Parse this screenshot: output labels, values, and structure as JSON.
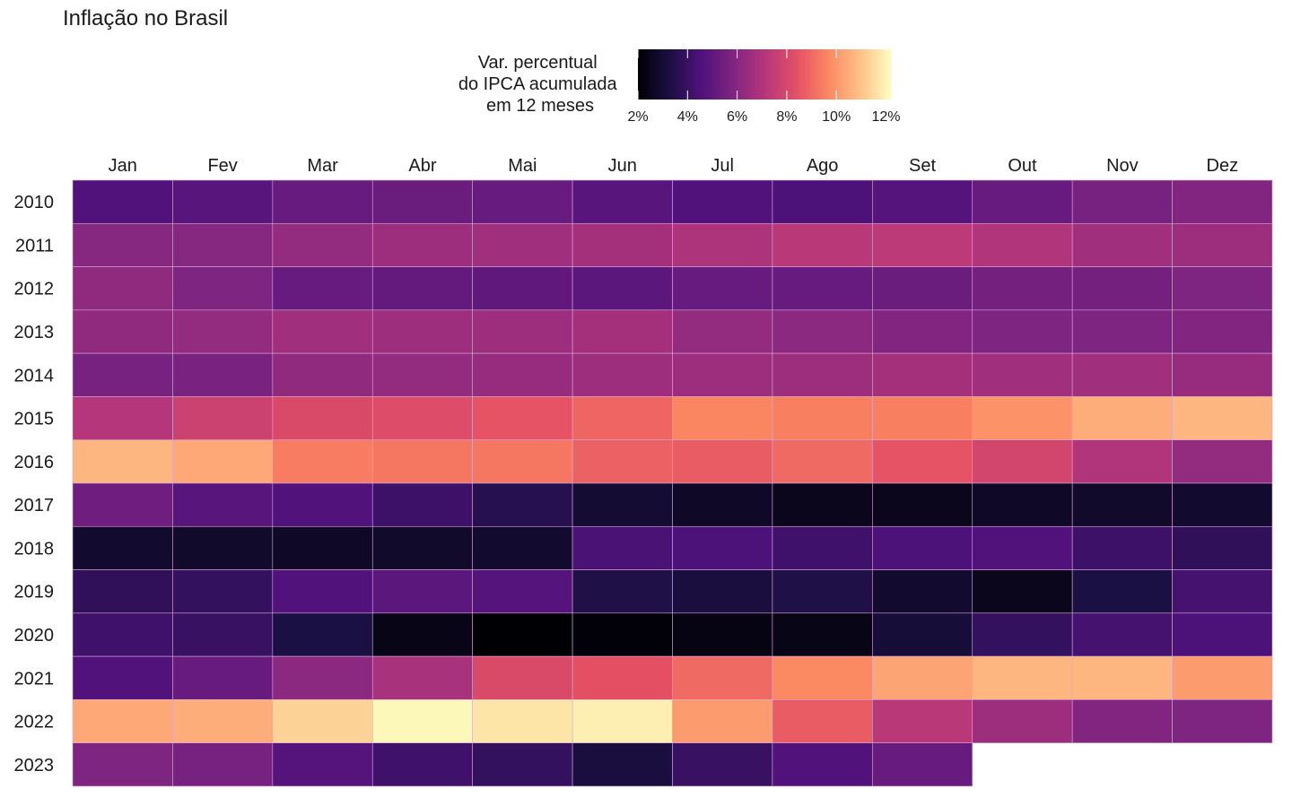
{
  "chart_data": {
    "type": "heatmap",
    "title": "Inflação no Brasil",
    "legend": {
      "title_lines": [
        "Var. percentual",
        "do IPCA acumulada",
        "em 12 meses"
      ],
      "ticks": [
        2,
        4,
        6,
        8,
        10,
        12
      ],
      "tick_labels": [
        "2%",
        "4%",
        "6%",
        "8%",
        "10%",
        "12%"
      ],
      "range": [
        2.0,
        12.2
      ],
      "placement": "top-center"
    },
    "colormap": "magma",
    "months": [
      "Jan",
      "Fev",
      "Mar",
      "Abr",
      "Mai",
      "Jun",
      "Jul",
      "Ago",
      "Set",
      "Out",
      "Nov",
      "Dez"
    ],
    "years": [
      "2010",
      "2011",
      "2012",
      "2013",
      "2014",
      "2015",
      "2016",
      "2017",
      "2018",
      "2019",
      "2020",
      "2021",
      "2022",
      "2023"
    ],
    "values": [
      [
        4.6,
        4.8,
        5.2,
        5.3,
        5.2,
        4.8,
        4.6,
        4.5,
        4.7,
        5.2,
        5.6,
        5.9
      ],
      [
        6.0,
        6.0,
        6.3,
        6.5,
        6.6,
        6.7,
        6.9,
        7.2,
        7.3,
        7.0,
        6.6,
        6.5
      ],
      [
        6.2,
        5.8,
        5.2,
        5.1,
        5.0,
        4.9,
        5.2,
        5.2,
        5.3,
        5.5,
        5.5,
        5.8
      ],
      [
        6.2,
        6.3,
        6.6,
        6.5,
        6.5,
        6.7,
        6.3,
        6.1,
        5.9,
        5.8,
        5.8,
        5.9
      ],
      [
        5.6,
        5.7,
        6.2,
        6.3,
        6.4,
        6.5,
        6.5,
        6.5,
        6.7,
        6.6,
        6.6,
        6.4
      ],
      [
        7.1,
        7.7,
        8.1,
        8.2,
        8.5,
        8.9,
        9.6,
        9.5,
        9.5,
        9.9,
        10.5,
        10.7
      ],
      [
        10.7,
        10.4,
        9.4,
        9.3,
        9.3,
        8.8,
        8.7,
        9.0,
        8.5,
        7.9,
        7.0,
        6.3
      ],
      [
        5.4,
        4.8,
        4.6,
        4.1,
        3.6,
        3.0,
        2.7,
        2.5,
        2.5,
        2.7,
        2.8,
        2.9
      ],
      [
        2.9,
        2.8,
        2.7,
        2.8,
        2.9,
        4.4,
        4.5,
        4.2,
        4.5,
        4.6,
        4.1,
        3.8
      ],
      [
        3.8,
        3.9,
        4.6,
        4.9,
        4.7,
        3.4,
        3.2,
        3.4,
        2.9,
        2.5,
        3.3,
        4.3
      ],
      [
        4.2,
        4.0,
        3.3,
        2.4,
        1.9,
        2.1,
        2.3,
        2.4,
        3.1,
        3.9,
        4.3,
        4.5
      ],
      [
        4.6,
        5.2,
        6.1,
        6.8,
        8.1,
        8.4,
        9.0,
        9.7,
        10.3,
        10.7,
        10.7,
        10.1
      ],
      [
        10.4,
        10.5,
        11.3,
        12.1,
        11.7,
        11.9,
        10.1,
        8.7,
        7.2,
        6.5,
        5.9,
        5.8
      ],
      [
        5.8,
        5.6,
        4.7,
        4.2,
        3.9,
        3.2,
        4.0,
        4.6,
        5.2,
        null,
        null,
        null
      ]
    ]
  }
}
